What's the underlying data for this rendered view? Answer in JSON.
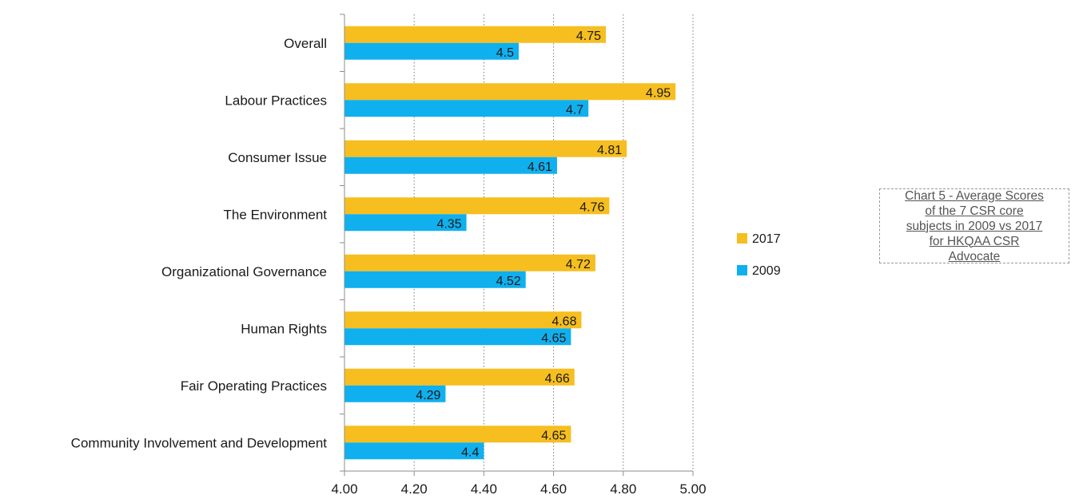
{
  "chart_data": {
    "type": "bar",
    "orientation": "horizontal",
    "categories": [
      "Overall",
      "Labour Practices",
      "Consumer Issue",
      "The Environment",
      "Organizational Governance",
      "Human Rights",
      "Fair Operating Practices",
      "Community Involvement and Development"
    ],
    "series": [
      {
        "name": "2017",
        "color": "#f6be1f",
        "values": [
          4.75,
          4.95,
          4.81,
          4.76,
          4.72,
          4.68,
          4.66,
          4.65
        ],
        "labels": [
          "4.75",
          "4.95",
          "4.81",
          "4.76",
          "4.72",
          "4.68",
          "4.66",
          "4.65"
        ]
      },
      {
        "name": "2009",
        "color": "#10b0ee",
        "values": [
          4.5,
          4.7,
          4.61,
          4.35,
          4.52,
          4.65,
          4.29,
          4.4
        ],
        "labels": [
          "4.5",
          "4.7",
          "4.61",
          "4.35",
          "4.52",
          "4.65",
          "4.29",
          "4.4"
        ]
      }
    ],
    "xlim": [
      4.0,
      5.0
    ],
    "xticks": [
      4.0,
      4.2,
      4.4,
      4.6,
      4.8,
      5.0
    ],
    "xtick_labels": [
      "4.00",
      "4.20",
      "4.40",
      "4.60",
      "4.80",
      "5.00"
    ],
    "grid": "vertical-dotted",
    "legend_position": "right",
    "legend_order": [
      "2017",
      "2009"
    ],
    "title": "",
    "xlabel": "",
    "ylabel": ""
  },
  "caption": {
    "text": "Chart 5 - Average Scores of the 7 CSR core subjects in 2009 vs 2017 for HKQAA CSR Advocate"
  }
}
